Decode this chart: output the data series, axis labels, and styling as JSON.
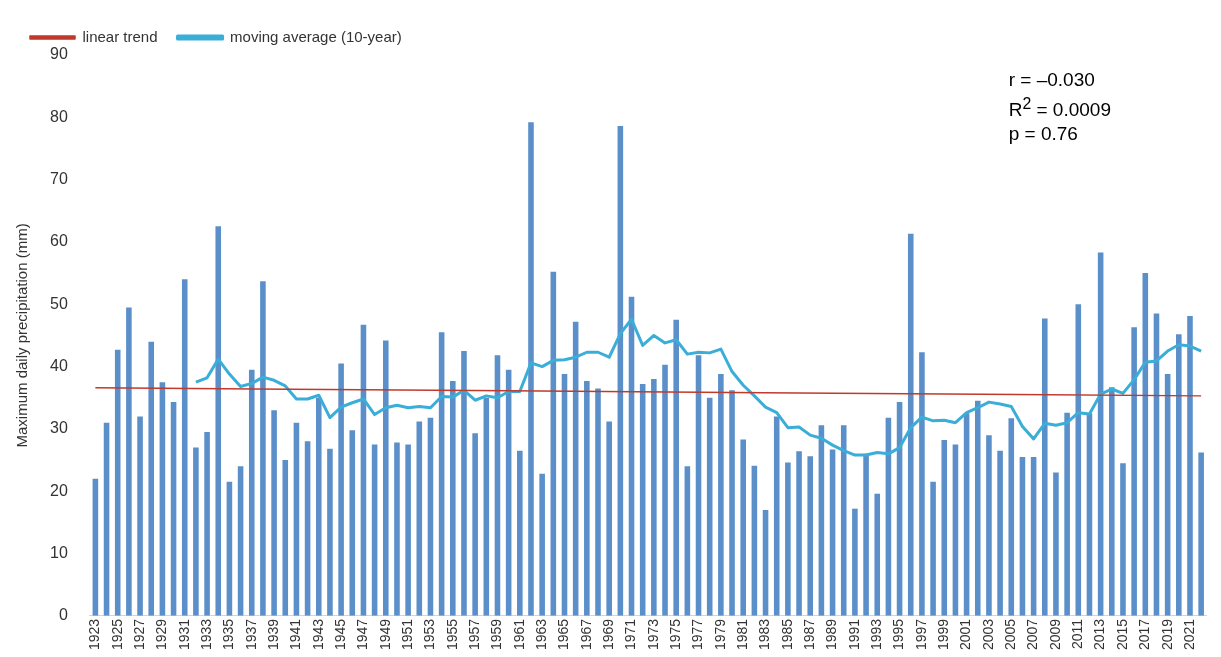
{
  "chart_data": {
    "type": "bar",
    "ylabel": "Maximum daily precipitation (mm)",
    "categories": [
      "1923",
      null,
      "1925",
      null,
      "1927",
      null,
      "1929",
      null,
      "1931",
      null,
      "1933",
      null,
      "1935",
      null,
      "1937",
      null,
      "1939",
      null,
      "1941",
      null,
      "1943",
      null,
      "1945",
      null,
      "1947",
      null,
      "1949",
      null,
      "1951",
      null,
      "1953",
      null,
      "1955",
      null,
      "1957",
      null,
      "1959",
      null,
      "1961",
      null,
      "1963",
      null,
      "1965",
      null,
      "1967",
      null,
      "1969",
      null,
      "1971",
      null,
      "1973",
      null,
      "1975",
      null,
      "1977",
      null,
      "1979",
      null,
      "1981",
      null,
      "1983",
      null,
      "1985",
      null,
      "1987",
      null,
      "1989",
      null,
      "1991",
      null,
      "1993",
      null,
      "1995",
      null,
      "1997",
      null,
      "1999",
      null,
      "2001",
      null,
      "2003",
      null,
      "2005",
      null,
      "2007",
      null,
      "2009",
      null,
      "2011",
      null,
      "2013",
      null,
      "2015",
      null,
      "2017",
      null,
      "2019",
      null,
      "2021",
      null
    ],
    "series": [
      {
        "color": "#5b8fc9",
        "values": [
          22,
          31,
          42.7,
          49.5,
          32,
          44,
          37.5,
          34.3,
          54,
          27,
          29.5,
          62.5,
          21.5,
          24,
          39.5,
          53.7,
          33,
          25,
          31,
          28,
          35,
          26.8,
          40.5,
          29.8,
          46.7,
          27.5,
          44.2,
          27.8,
          27.5,
          31.2,
          31.8,
          45.5,
          37.7,
          42.5,
          29.3,
          35,
          41.8,
          39.5,
          26.5,
          79.2,
          22.8,
          55.2,
          38.8,
          47.2,
          37.7,
          36.5,
          31.2,
          78.6,
          51.2,
          37.2,
          38,
          40.3,
          47.5,
          24,
          41.8,
          35,
          38.8,
          36.2,
          28.3,
          24.1,
          17,
          32,
          24.6,
          26.4,
          25.6,
          30.6,
          26.7,
          30.6,
          17.2,
          26,
          19.6,
          31.8,
          34.3,
          61.3,
          42.3,
          21.5,
          28.2,
          27.5,
          32.5,
          34.5,
          29,
          26.5,
          31.7,
          25.5,
          25.5,
          47.7,
          23,
          32.6,
          50,
          32.5,
          58.3,
          36.7,
          24.5,
          46.3,
          55,
          48.5,
          38.8,
          45.2,
          48.1,
          26.2
        ]
      },
      {
        "type": "line",
        "name": "linear trend",
        "color": "#c0392b",
        "values": [
          36.6,
          null,
          null,
          null,
          null,
          null,
          null,
          null,
          null,
          null,
          null,
          null,
          null,
          null,
          null,
          null,
          null,
          null,
          null,
          null,
          null,
          null,
          null,
          null,
          null,
          null,
          null,
          null,
          null,
          null,
          null,
          null,
          null,
          null,
          null,
          null,
          null,
          null,
          null,
          null,
          null,
          null,
          null,
          null,
          null,
          null,
          null,
          null,
          null,
          null,
          null,
          null,
          null,
          null,
          null,
          null,
          null,
          null,
          null,
          null,
          null,
          null,
          null,
          null,
          null,
          null,
          null,
          null,
          null,
          null,
          null,
          null,
          null,
          null,
          null,
          null,
          null,
          null,
          null,
          null,
          null,
          null,
          null,
          null,
          null,
          null,
          null,
          null,
          null,
          null,
          null,
          null,
          null,
          null,
          null,
          null,
          null,
          null,
          null,
          35.3
        ]
      },
      {
        "type": "line",
        "name": "moving average (10-year)",
        "color": "#3aaed8",
        "values": [
          null,
          null,
          null,
          null,
          null,
          null,
          null,
          null,
          null,
          37.5,
          38.2,
          41.2,
          38.8,
          36.8,
          37.3,
          38.3,
          37.8,
          36.9,
          34.8,
          34.8,
          35.4,
          31.8,
          33.5,
          34.2,
          34.8,
          32.3,
          33.4,
          33.8,
          33.4,
          33.6,
          33.4,
          35.2,
          35.1,
          36.2,
          34.6,
          35.3,
          35,
          36,
          36,
          40.6,
          40,
          41,
          41.1,
          41.5,
          42.3,
          42.3,
          41.5,
          45.3,
          47.6,
          43.4,
          45,
          43.8,
          44.3,
          42,
          42.3,
          42.2,
          42.8,
          39.2,
          37,
          35.3,
          33.5,
          32.6,
          30.2,
          30.3,
          29,
          28.5,
          27.4,
          26.5,
          25.8,
          25.8,
          26.2,
          26,
          27,
          30.2,
          31.9,
          31.3,
          31.4,
          31,
          32.6,
          33.4,
          34.3,
          34,
          33.6,
          30.4,
          28.4,
          30.9,
          30.6,
          31,
          32.6,
          32.4,
          35.6,
          36.4,
          35.7,
          37.9,
          40.7,
          40.9,
          42.5,
          43.5,
          43.3,
          42.5
        ]
      }
    ],
    "ylim": [
      0,
      90
    ],
    "yticks": [
      0,
      10,
      20,
      30,
      40,
      50,
      60,
      70,
      80,
      90
    ],
    "grid": false,
    "legend": "top left",
    "marker": "none",
    "annotations": [
      "r = –0.030",
      "R$^{2}$ = 0.0009",
      "p = 0.76"
    ]
  }
}
